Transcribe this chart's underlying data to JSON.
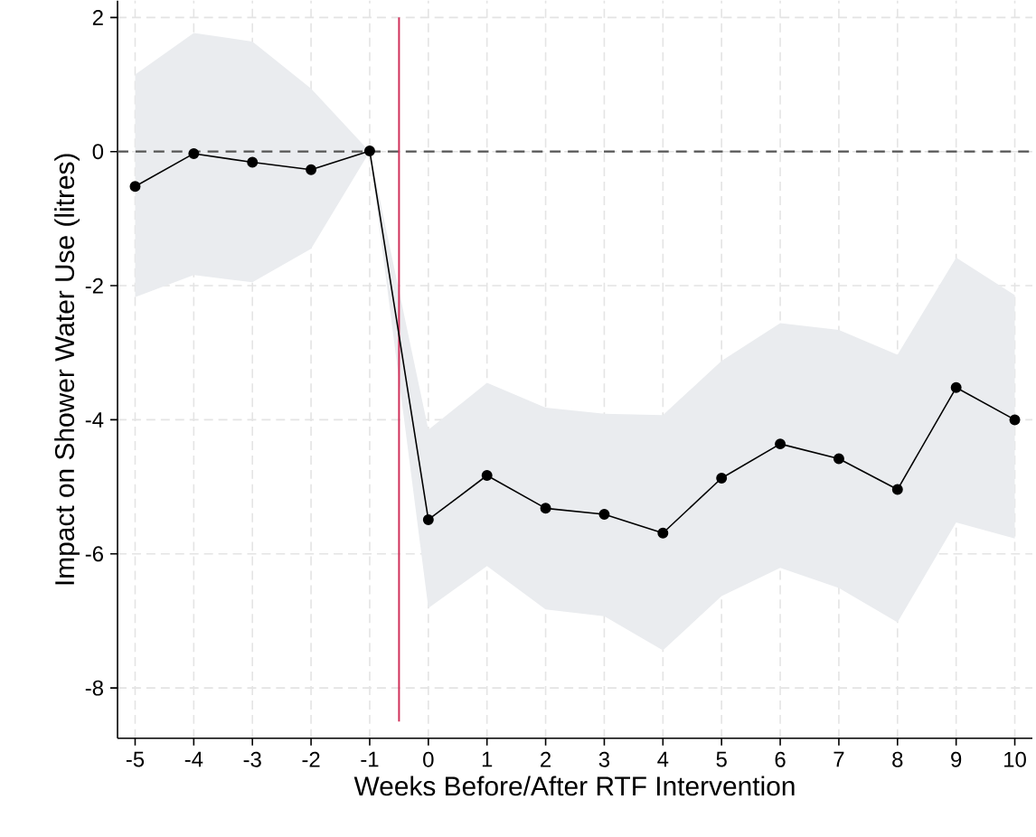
{
  "chart_data": {
    "type": "line",
    "xlabel": "Weeks Before/After RTF Intervention",
    "ylabel": "Impact on Shower Water Use (litres)",
    "x": [
      -5,
      -4,
      -3,
      -2,
      -1,
      0,
      1,
      2,
      3,
      4,
      5,
      6,
      7,
      8,
      9,
      10
    ],
    "series": [
      {
        "color": "#000000",
        "values": [
          -0.52,
          -0.03,
          -0.16,
          -0.27,
          0.01,
          -5.49,
          -4.83,
          -5.32,
          -5.41,
          -5.69,
          -4.87,
          -4.36,
          -4.58,
          -5.04,
          -3.52,
          -4.0
        ],
        "lower": [
          -2.17,
          -1.84,
          -1.95,
          -1.45,
          0.0,
          -6.81,
          -6.18,
          -6.83,
          -6.93,
          -7.44,
          -6.63,
          -6.21,
          -6.51,
          -7.02,
          -5.53,
          -5.77
        ],
        "upper": [
          1.15,
          1.77,
          1.64,
          0.94,
          0.0,
          -4.15,
          -3.45,
          -3.82,
          -3.91,
          -3.93,
          -3.12,
          -2.56,
          -2.66,
          -3.03,
          -1.58,
          -2.14
        ]
      }
    ],
    "xlim": [
      -5.3,
      10.3
    ],
    "ylim": [
      -8.75,
      2.25
    ],
    "xticks": [
      -5,
      -4,
      -3,
      -2,
      -1,
      0,
      1,
      2,
      3,
      4,
      5,
      6,
      7,
      8,
      9,
      10
    ],
    "yticks": [
      -8,
      -6,
      -4,
      -2,
      0,
      2
    ],
    "ref_lines": [
      {
        "axis": "y",
        "value": 0,
        "color": "#555555",
        "line_style": "dashed"
      },
      {
        "axis": "x",
        "value": -0.5,
        "color": "#d0305a",
        "line_style": "solid"
      }
    ],
    "grid": true,
    "marker": "circle",
    "line_style": "solid"
  }
}
